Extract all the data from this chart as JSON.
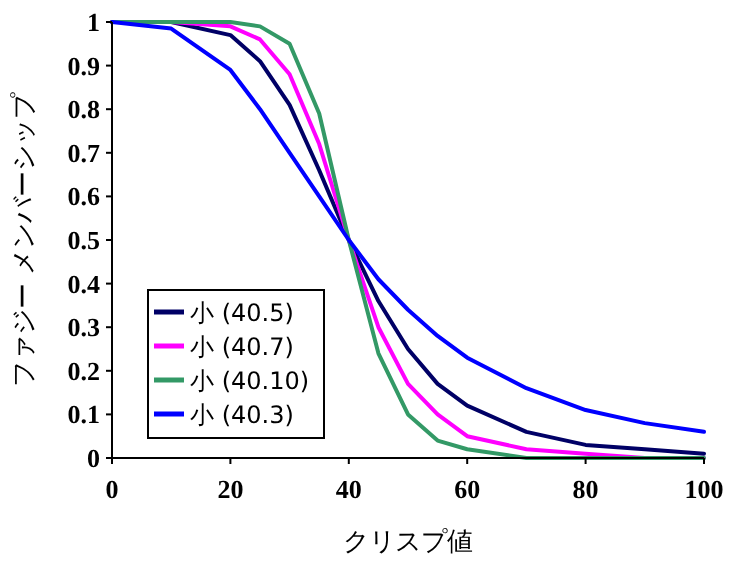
{
  "chart_data": {
    "type": "line",
    "xlabel": "クリスプ値",
    "ylabel": "ファジー メンバーシップ",
    "x": [
      0,
      10,
      20,
      25,
      30,
      35,
      40,
      45,
      50,
      55,
      60,
      70,
      80,
      90,
      100
    ],
    "series": [
      {
        "name": "小 (40.5)",
        "color": "#000066",
        "values": [
          1,
          1,
          0.97,
          0.91,
          0.81,
          0.66,
          0.5,
          0.36,
          0.25,
          0.17,
          0.12,
          0.06,
          0.03,
          0.02,
          0.01
        ]
      },
      {
        "name": "小 (40.7)",
        "color": "#ff00ff",
        "values": [
          1,
          1,
          0.99,
          0.96,
          0.88,
          0.72,
          0.5,
          0.3,
          0.17,
          0.1,
          0.05,
          0.02,
          0.01,
          0,
          0
        ]
      },
      {
        "name": "小 (40.10)",
        "color": "#339966",
        "values": [
          1,
          1,
          1,
          0.99,
          0.95,
          0.79,
          0.5,
          0.24,
          0.1,
          0.04,
          0.02,
          0,
          0,
          0,
          0
        ]
      },
      {
        "name": "小 (40.3)",
        "color": "#0000ff",
        "values": [
          1,
          0.985,
          0.89,
          0.8,
          0.7,
          0.6,
          0.5,
          0.41,
          0.34,
          0.28,
          0.23,
          0.16,
          0.11,
          0.08,
          0.06
        ]
      }
    ],
    "xlim": [
      0,
      100
    ],
    "xticks": [
      0,
      20,
      40,
      60,
      80,
      100
    ],
    "ylim": [
      0,
      1
    ],
    "yticks": [
      0,
      0.1,
      0.2,
      0.3,
      0.4,
      0.5,
      0.6,
      0.7,
      0.8,
      0.9,
      1
    ],
    "grid": false,
    "legend": "bottom left",
    "marker": "none",
    "line_style": "solid"
  }
}
